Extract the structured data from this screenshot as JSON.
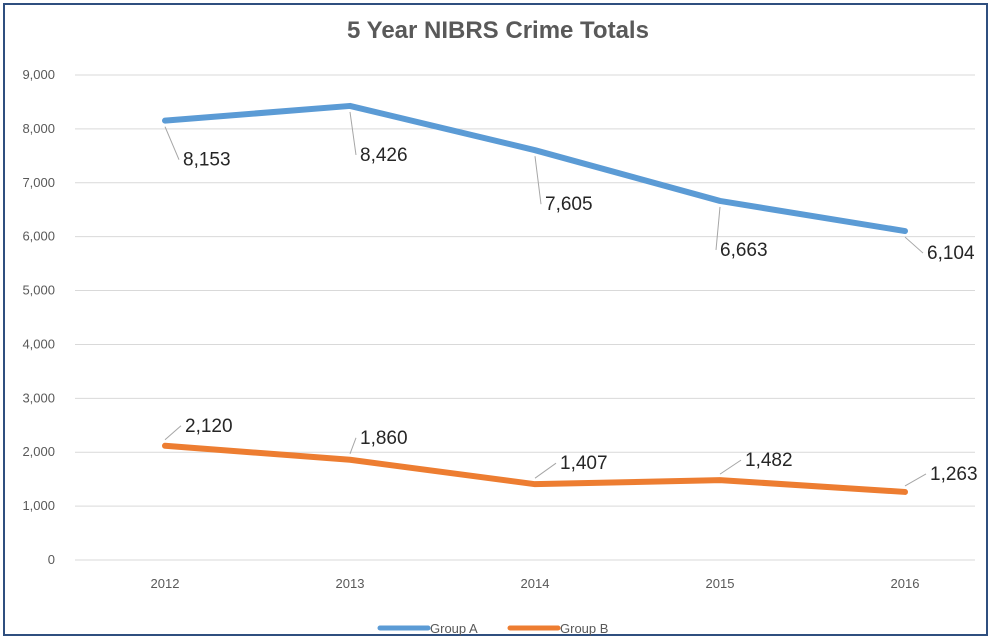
{
  "chart_data": {
    "type": "line",
    "title": "5 Year NIBRS Crime Totals",
    "xlabel": "",
    "ylabel": "",
    "categories": [
      "2012",
      "2013",
      "2014",
      "2015",
      "2016"
    ],
    "ylim": [
      0,
      9000
    ],
    "yticks": [
      0,
      1000,
      2000,
      3000,
      4000,
      5000,
      6000,
      7000,
      8000,
      9000
    ],
    "ytick_labels": [
      "0",
      "1,000",
      "2,000",
      "3,000",
      "4,000",
      "5,000",
      "6,000",
      "7,000",
      "8,000",
      "9,000"
    ],
    "grid": true,
    "legend_position": "bottom",
    "series": [
      {
        "name": "Group A",
        "color": "#5b9bd5",
        "values": [
          8153,
          8426,
          7605,
          6663,
          6104
        ],
        "labels": [
          "8,153",
          "8,426",
          "7,605",
          "6,663",
          "6,104"
        ]
      },
      {
        "name": "Group B",
        "color": "#ed7d31",
        "values": [
          2120,
          1860,
          1407,
          1482,
          1263
        ],
        "labels": [
          "2,120",
          "1,860",
          "1,407",
          "1,482",
          "1,263"
        ]
      }
    ]
  }
}
